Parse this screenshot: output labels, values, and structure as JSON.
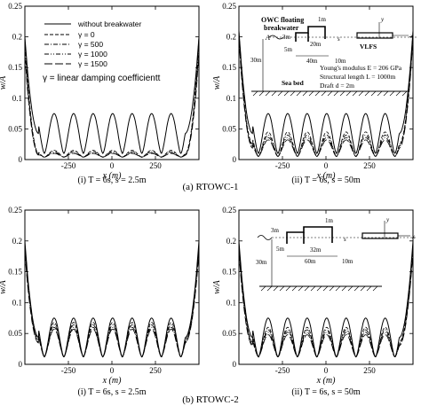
{
  "chart_data": [
    {
      "type": "line",
      "panel": "(i)",
      "caption": "(i) T = 6s, s = 2.5m",
      "xlabel": "x (m)",
      "ylabel": "w/A",
      "xlim": [
        -500,
        500
      ],
      "ylim": [
        0,
        0.25
      ],
      "xticks": [
        -250,
        0,
        250
      ],
      "yticks": [
        0,
        0.05,
        0.1,
        0.15,
        0.2,
        0.25
      ],
      "series": [
        {
          "name": "without breakwater",
          "style": "solid",
          "peaks": 0.075,
          "trough": 0.01,
          "edge": 0.2
        },
        {
          "name": "γ = 0",
          "style": "dashed",
          "peaks": 0.015,
          "trough": 0.004,
          "edge": 0.2
        },
        {
          "name": "γ = 500",
          "style": "dashdot",
          "peaks": 0.013,
          "trough": 0.004,
          "edge": 0.19
        },
        {
          "name": "γ = 1000",
          "style": "dashdotdot",
          "peaks": 0.011,
          "trough": 0.004,
          "edge": 0.18
        },
        {
          "name": "γ = 1500",
          "style": "longdash",
          "peaks": 0.01,
          "trough": 0.004,
          "edge": 0.17
        }
      ],
      "legend": {
        "placement": "top-left",
        "note": "γ = linear damping coefficientt"
      }
    },
    {
      "type": "line",
      "panel": "(ii)",
      "caption": "(ii) T = 6s, s = 50m",
      "xlabel": "x (m)",
      "ylabel": "w/A",
      "xlim": [
        -500,
        500
      ],
      "ylim": [
        0,
        0.25
      ],
      "xticks": [
        -250,
        0,
        250
      ],
      "yticks": [
        0,
        0.05,
        0.1,
        0.15,
        0.2,
        0.25
      ],
      "series": [
        {
          "style": "solid",
          "peaks": 0.075,
          "trough": 0.01,
          "edge": 0.21
        },
        {
          "style": "dashed",
          "peaks": 0.045,
          "trough": 0.005,
          "edge": 0.21
        },
        {
          "style": "dashdot",
          "peaks": 0.04,
          "trough": 0.005,
          "edge": 0.205
        },
        {
          "style": "dashdotdot",
          "peaks": 0.036,
          "trough": 0.005,
          "edge": 0.2
        },
        {
          "style": "longdash",
          "peaks": 0.032,
          "trough": 0.005,
          "edge": 0.195
        }
      ]
    },
    {
      "type": "line",
      "panel": "(i)",
      "caption": "(i) T = 6s, s = 2.5m",
      "xlabel": "x (m)",
      "ylabel": "w/A",
      "xlim": [
        -500,
        500
      ],
      "ylim": [
        0,
        0.25
      ],
      "xticks": [
        -250,
        0,
        250
      ],
      "yticks": [
        0,
        0.05,
        0.1,
        0.15,
        0.2,
        0.25
      ],
      "series": [
        {
          "style": "solid",
          "peaks": 0.075,
          "trough": 0.012,
          "edge": 0.2
        },
        {
          "style": "dashed",
          "peaks": 0.068,
          "trough": 0.012,
          "edge": 0.195
        },
        {
          "style": "dashdot",
          "peaks": 0.064,
          "trough": 0.012,
          "edge": 0.19
        },
        {
          "style": "dashdotdot",
          "peaks": 0.06,
          "trough": 0.012,
          "edge": 0.185
        },
        {
          "style": "longdash",
          "peaks": 0.057,
          "trough": 0.012,
          "edge": 0.18
        }
      ]
    },
    {
      "type": "line",
      "panel": "(ii)",
      "caption": "(ii) T = 6s, s = 50m",
      "xlabel": "x (m)",
      "ylabel": "w/A",
      "xlim": [
        -500,
        500
      ],
      "ylim": [
        0,
        0.25
      ],
      "xticks": [
        -250,
        0,
        250
      ],
      "yticks": [
        0,
        0.05,
        0.1,
        0.15,
        0.2,
        0.25
      ],
      "series": [
        {
          "style": "solid",
          "peaks": 0.075,
          "trough": 0.012,
          "edge": 0.2
        },
        {
          "style": "dashed",
          "peaks": 0.06,
          "trough": 0.012,
          "edge": 0.195
        },
        {
          "style": "dashdot",
          "peaks": 0.056,
          "trough": 0.012,
          "edge": 0.19
        },
        {
          "style": "dashdotdot",
          "peaks": 0.052,
          "trough": 0.012,
          "edge": 0.185
        },
        {
          "style": "longdash",
          "peaks": 0.048,
          "trough": 0.012,
          "edge": 0.18
        }
      ]
    }
  ],
  "group_labels": [
    "(a) RTOWC-1",
    "(b) RTOWC-2"
  ],
  "diagram_1": {
    "title_line1": "OWC floating",
    "title_line2": "breakwater",
    "wave_label": "A",
    "dim_top": "1m",
    "dim_left_top": "3m",
    "dim_left_bottom": "5m",
    "dim_inner": "20m",
    "dim_bottom": "40m",
    "dim_gap": "10m",
    "spacing_label": "s",
    "structure_label": "VLFS",
    "x_axis": "x",
    "y_axis": "y",
    "depth": "30m",
    "seabed": "Sea bed",
    "note1": "Young's modulus E = 206 GPa",
    "note2": "Structural length L = 1000m",
    "note3": "Draft d = 2m"
  },
  "diagram_2": {
    "dim_top": "1m",
    "dim_left_top": "3m",
    "dim_left_bottom": "5m",
    "dim_inner": "32m",
    "dim_bottom": "60m",
    "dim_gap": "10m",
    "spacing_label": "s",
    "x_axis": "x",
    "y_axis": "y",
    "depth": "30m"
  }
}
